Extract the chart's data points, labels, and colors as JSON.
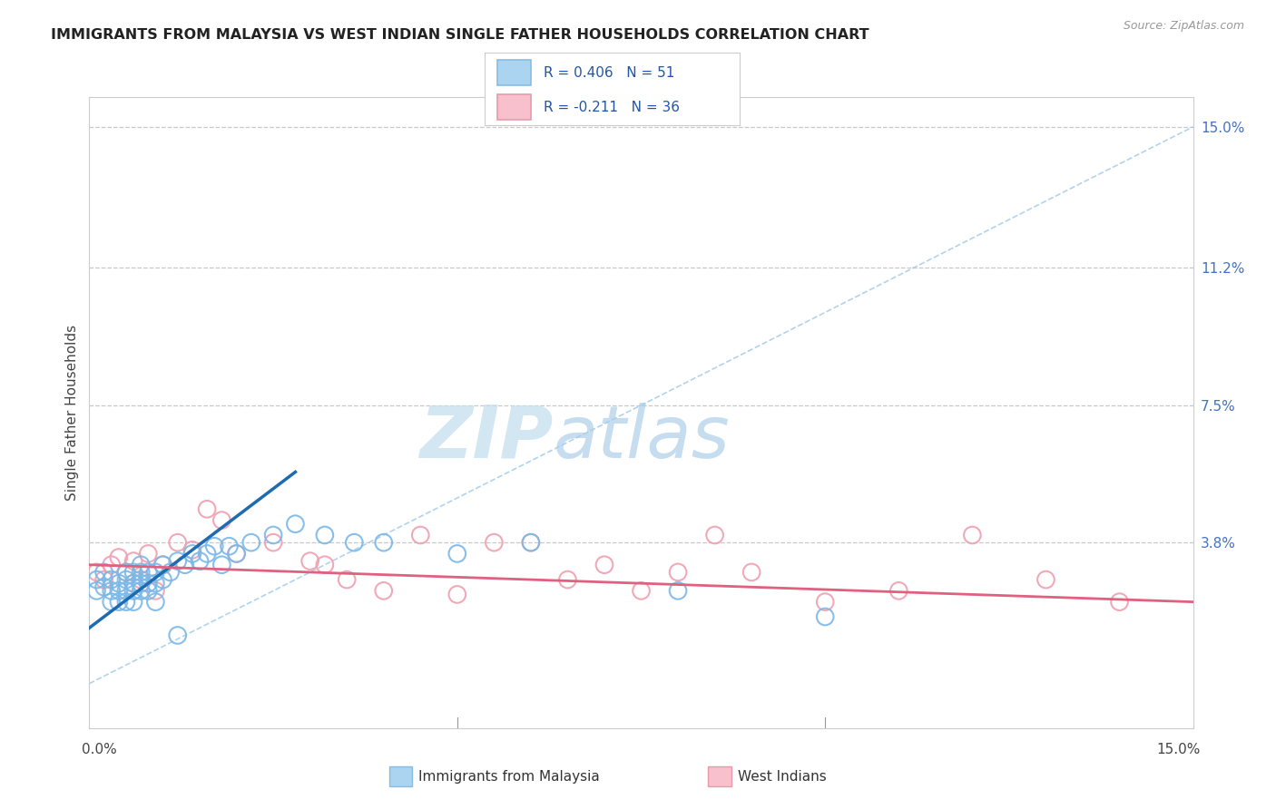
{
  "title": "IMMIGRANTS FROM MALAYSIA VS WEST INDIAN SINGLE FATHER HOUSEHOLDS CORRELATION CHART",
  "source": "Source: ZipAtlas.com",
  "ylabel": "Single Father Households",
  "y_tick_labels": [
    "3.8%",
    "7.5%",
    "11.2%",
    "15.0%"
  ],
  "y_tick_positions": [
    0.038,
    0.075,
    0.112,
    0.15
  ],
  "xmin": 0.0,
  "xmax": 0.15,
  "ymin": -0.012,
  "ymax": 0.158,
  "legend_text1": "R = 0.406   N = 51",
  "legend_text2": "R = -0.211   N = 36",
  "series1_label": "Immigrants from Malaysia",
  "series2_label": "West Indians",
  "color_blue_circle": "#7ab8e8",
  "color_blue_line": "#1f6bb0",
  "color_pink_circle": "#f0a0b0",
  "color_pink_line": "#e06080",
  "color_diag": "#9ec8e8",
  "watermark_zip": "ZIP",
  "watermark_atlas": "atlas",
  "background_color": "#ffffff",
  "grid_color": "#c8c8c8",
  "blue_x": [
    0.001,
    0.001,
    0.002,
    0.002,
    0.003,
    0.003,
    0.003,
    0.004,
    0.004,
    0.004,
    0.005,
    0.005,
    0.005,
    0.005,
    0.006,
    0.006,
    0.006,
    0.006,
    0.007,
    0.007,
    0.007,
    0.007,
    0.008,
    0.008,
    0.008,
    0.009,
    0.009,
    0.009,
    0.01,
    0.01,
    0.011,
    0.012,
    0.013,
    0.014,
    0.015,
    0.016,
    0.017,
    0.018,
    0.019,
    0.02,
    0.022,
    0.025,
    0.028,
    0.032,
    0.036,
    0.04,
    0.05,
    0.06,
    0.08,
    0.1,
    0.012
  ],
  "blue_y": [
    0.028,
    0.025,
    0.03,
    0.026,
    0.028,
    0.025,
    0.022,
    0.027,
    0.025,
    0.022,
    0.03,
    0.028,
    0.025,
    0.022,
    0.03,
    0.027,
    0.025,
    0.022,
    0.032,
    0.03,
    0.027,
    0.025,
    0.03,
    0.027,
    0.025,
    0.03,
    0.027,
    0.022,
    0.032,
    0.028,
    0.03,
    0.033,
    0.032,
    0.035,
    0.033,
    0.035,
    0.037,
    0.032,
    0.037,
    0.035,
    0.038,
    0.04,
    0.043,
    0.04,
    0.038,
    0.038,
    0.035,
    0.038,
    0.025,
    0.018,
    0.013
  ],
  "pink_x": [
    0.001,
    0.002,
    0.003,
    0.004,
    0.005,
    0.006,
    0.006,
    0.007,
    0.008,
    0.009,
    0.01,
    0.012,
    0.014,
    0.016,
    0.018,
    0.02,
    0.025,
    0.03,
    0.032,
    0.035,
    0.04,
    0.045,
    0.05,
    0.055,
    0.06,
    0.065,
    0.07,
    0.075,
    0.08,
    0.09,
    0.1,
    0.11,
    0.12,
    0.13,
    0.085,
    0.14
  ],
  "pink_y": [
    0.03,
    0.028,
    0.032,
    0.034,
    0.03,
    0.033,
    0.027,
    0.028,
    0.035,
    0.025,
    0.032,
    0.038,
    0.036,
    0.047,
    0.044,
    0.035,
    0.038,
    0.033,
    0.032,
    0.028,
    0.025,
    0.04,
    0.024,
    0.038,
    0.038,
    0.028,
    0.032,
    0.025,
    0.03,
    0.03,
    0.022,
    0.025,
    0.04,
    0.028,
    0.04,
    0.022
  ],
  "blue_line_x": [
    0.0,
    0.028
  ],
  "blue_line_y": [
    0.015,
    0.057
  ],
  "pink_line_x": [
    0.0,
    0.15
  ],
  "pink_line_y": [
    0.032,
    0.022
  ]
}
